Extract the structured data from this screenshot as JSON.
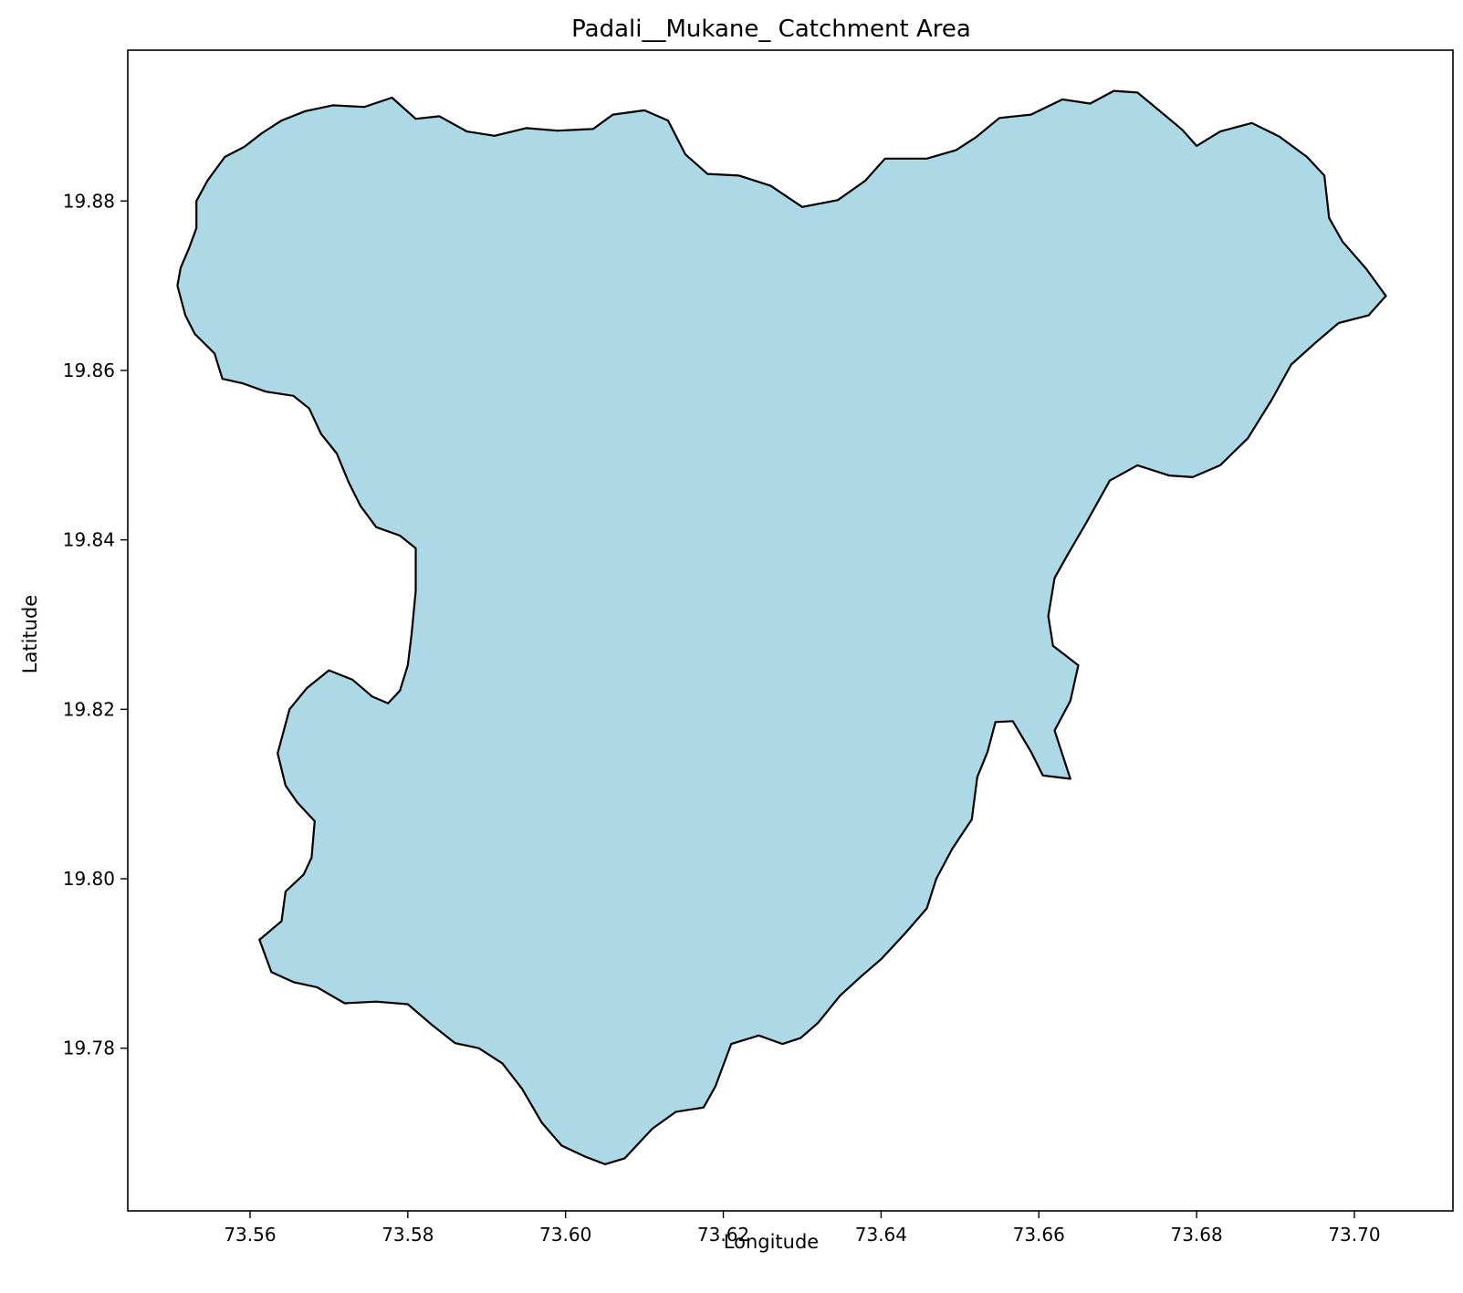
{
  "chart_data": {
    "type": "map",
    "title": "Padali__Mukane_ Catchment Area",
    "xlabel": "Longitude",
    "ylabel": "Latitude",
    "xlim": [
      73.5445,
      73.7125
    ],
    "ylim": [
      19.7608,
      19.8978
    ],
    "xticks": [
      73.56,
      73.58,
      73.6,
      73.62,
      73.64,
      73.66,
      73.68,
      73.7
    ],
    "xtick_labels": [
      "73.56",
      "73.58",
      "73.60",
      "73.62",
      "73.64",
      "73.66",
      "73.68",
      "73.70"
    ],
    "yticks": [
      19.78,
      19.8,
      19.82,
      19.84,
      19.86,
      19.88
    ],
    "ytick_labels": [
      "19.78",
      "19.80",
      "19.82",
      "19.84",
      "19.86",
      "19.88"
    ],
    "grid": false,
    "fill_color": "#add8e6",
    "edge_color": "#000000",
    "polygon": [
      [
        73.5512,
        19.8721
      ],
      [
        73.5523,
        19.8745
      ],
      [
        73.5532,
        19.8768
      ],
      [
        73.5532,
        19.88
      ],
      [
        73.5546,
        19.8824
      ],
      [
        73.5568,
        19.8852
      ],
      [
        73.5593,
        19.8864
      ],
      [
        73.5615,
        19.888
      ],
      [
        73.564,
        19.8895
      ],
      [
        73.567,
        19.8906
      ],
      [
        73.5705,
        19.8913
      ],
      [
        73.5745,
        19.8911
      ],
      [
        73.578,
        19.8922
      ],
      [
        73.581,
        19.8897
      ],
      [
        73.584,
        19.89
      ],
      [
        73.5875,
        19.8882
      ],
      [
        73.591,
        19.8877
      ],
      [
        73.595,
        19.8886
      ],
      [
        73.599,
        19.8883
      ],
      [
        73.6035,
        19.8885
      ],
      [
        73.606,
        19.8902
      ],
      [
        73.61,
        19.8907
      ],
      [
        73.613,
        19.8895
      ],
      [
        73.6152,
        19.8855
      ],
      [
        73.618,
        19.8832
      ],
      [
        73.622,
        19.883
      ],
      [
        73.626,
        19.8818
      ],
      [
        73.63,
        19.8793
      ],
      [
        73.6345,
        19.8801
      ],
      [
        73.638,
        19.8824
      ],
      [
        73.6405,
        19.885
      ],
      [
        73.6458,
        19.885
      ],
      [
        73.6495,
        19.886
      ],
      [
        73.652,
        19.8875
      ],
      [
        73.655,
        19.8898
      ],
      [
        73.659,
        19.8902
      ],
      [
        73.663,
        19.892
      ],
      [
        73.6665,
        19.8915
      ],
      [
        73.6695,
        19.893
      ],
      [
        73.6725,
        19.8928
      ],
      [
        73.6755,
        19.8905
      ],
      [
        73.6782,
        19.8884
      ],
      [
        73.68,
        19.8865
      ],
      [
        73.683,
        19.8882
      ],
      [
        73.687,
        19.8892
      ],
      [
        73.6905,
        19.8876
      ],
      [
        73.694,
        19.8852
      ],
      [
        73.6962,
        19.883
      ],
      [
        73.6968,
        19.878
      ],
      [
        73.6985,
        19.8752
      ],
      [
        73.7015,
        19.872
      ],
      [
        73.704,
        19.8688
      ],
      [
        73.7018,
        19.8665
      ],
      [
        73.698,
        19.8656
      ],
      [
        73.695,
        19.8632
      ],
      [
        73.692,
        19.8607
      ],
      [
        73.6895,
        19.8565
      ],
      [
        73.6865,
        19.852
      ],
      [
        73.683,
        19.8488
      ],
      [
        73.6795,
        19.8474
      ],
      [
        73.6765,
        19.8476
      ],
      [
        73.6725,
        19.8488
      ],
      [
        73.669,
        19.847
      ],
      [
        73.666,
        19.842
      ],
      [
        73.6635,
        19.838
      ],
      [
        73.662,
        19.8355
      ],
      [
        73.6612,
        19.831
      ],
      [
        73.6618,
        19.8275
      ],
      [
        73.665,
        19.8252
      ],
      [
        73.664,
        19.821
      ],
      [
        73.662,
        19.8175
      ],
      [
        73.664,
        19.8118
      ],
      [
        73.6605,
        19.8122
      ],
      [
        73.659,
        19.815
      ],
      [
        73.6567,
        19.8186
      ],
      [
        73.6545,
        19.8185
      ],
      [
        73.6535,
        19.815
      ],
      [
        73.6522,
        19.812
      ],
      [
        73.6515,
        19.807
      ],
      [
        73.649,
        19.8035
      ],
      [
        73.647,
        19.8
      ],
      [
        73.6458,
        19.7965
      ],
      [
        73.643,
        19.7935
      ],
      [
        73.64,
        19.7905
      ],
      [
        73.6375,
        19.7885
      ],
      [
        73.6348,
        19.7862
      ],
      [
        73.632,
        19.783
      ],
      [
        73.6298,
        19.7812
      ],
      [
        73.6275,
        19.7805
      ],
      [
        73.6245,
        19.7815
      ],
      [
        73.621,
        19.7805
      ],
      [
        73.619,
        19.7755
      ],
      [
        73.6175,
        19.773
      ],
      [
        73.614,
        19.7725
      ],
      [
        73.611,
        19.7705
      ],
      [
        73.6075,
        19.767
      ],
      [
        73.605,
        19.7663
      ],
      [
        73.6025,
        19.7672
      ],
      [
        73.5995,
        19.7685
      ],
      [
        73.597,
        19.7712
      ],
      [
        73.5945,
        19.7752
      ],
      [
        73.592,
        19.7782
      ],
      [
        73.589,
        19.78
      ],
      [
        73.586,
        19.7806
      ],
      [
        73.583,
        19.7828
      ],
      [
        73.58,
        19.7852
      ],
      [
        73.576,
        19.7855
      ],
      [
        73.572,
        19.7853
      ],
      [
        73.5685,
        19.7872
      ],
      [
        73.5655,
        19.7878
      ],
      [
        73.5627,
        19.789
      ],
      [
        73.5612,
        19.7928
      ],
      [
        73.564,
        19.795
      ],
      [
        73.5645,
        19.7985
      ],
      [
        73.5668,
        19.8005
      ],
      [
        73.5678,
        19.8025
      ],
      [
        73.5682,
        19.8068
      ],
      [
        73.566,
        19.809
      ],
      [
        73.5645,
        19.811
      ],
      [
        73.5635,
        19.8148
      ],
      [
        73.565,
        19.82
      ],
      [
        73.5672,
        19.8225
      ],
      [
        73.57,
        19.8246
      ],
      [
        73.573,
        19.8235
      ],
      [
        73.5755,
        19.8215
      ],
      [
        73.5775,
        19.8207
      ],
      [
        73.579,
        19.8222
      ],
      [
        73.58,
        19.8252
      ],
      [
        73.5805,
        19.829
      ],
      [
        73.581,
        19.834
      ],
      [
        73.581,
        19.839
      ],
      [
        73.579,
        19.8405
      ],
      [
        73.576,
        19.8415
      ],
      [
        73.574,
        19.844
      ],
      [
        73.5725,
        19.8468
      ],
      [
        73.571,
        19.8502
      ],
      [
        73.569,
        19.8525
      ],
      [
        73.5675,
        19.8555
      ],
      [
        73.5655,
        19.857
      ],
      [
        73.562,
        19.8575
      ],
      [
        73.559,
        19.8585
      ],
      [
        73.5565,
        19.859
      ],
      [
        73.5555,
        19.862
      ],
      [
        73.553,
        19.8643
      ],
      [
        73.5518,
        19.8665
      ],
      [
        73.5508,
        19.87
      ]
    ]
  }
}
